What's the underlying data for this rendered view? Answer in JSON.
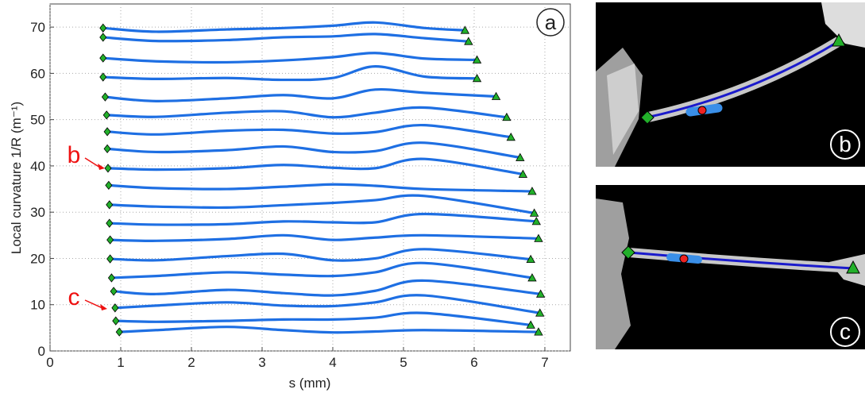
{
  "chart_data": {
    "type": "line",
    "xlabel": "s (mm)",
    "ylabel": "Local curvature 1/R (m⁻¹)",
    "xlim": [
      0,
      7.36
    ],
    "ylim": [
      0,
      75
    ],
    "xticks": [
      0,
      1,
      2,
      3,
      4,
      5,
      6,
      7
    ],
    "yticks": [
      0,
      10,
      20,
      30,
      40,
      50,
      60,
      70
    ],
    "grid": true,
    "line_color": "#1e6fe3",
    "start_marker_color": "#22b02a",
    "end_marker_color": "#22b02a",
    "panel_label": "a",
    "annotations": [
      "b",
      "c"
    ],
    "annotation_color": "#ee1111",
    "series": [
      {
        "x": [
          0.75,
          1.5,
          2.5,
          3.3,
          4.0,
          4.6,
          5.3,
          5.87
        ],
        "values": [
          69.8,
          69.0,
          69.5,
          69.8,
          70.3,
          71.0,
          69.8,
          69.3
        ]
      },
      {
        "x": [
          0.75,
          1.5,
          2.5,
          3.3,
          4.0,
          4.6,
          5.3,
          5.92
        ],
        "values": [
          67.8,
          67.0,
          67.2,
          67.8,
          68.0,
          68.5,
          67.6,
          66.9
        ]
      },
      {
        "x": [
          0.75,
          1.5,
          2.5,
          3.3,
          4.0,
          4.6,
          5.3,
          6.04
        ],
        "values": [
          63.3,
          62.6,
          62.4,
          62.8,
          63.5,
          64.4,
          63.2,
          62.9
        ]
      },
      {
        "x": [
          0.75,
          1.5,
          2.5,
          3.3,
          4.0,
          4.6,
          5.3,
          6.04
        ],
        "values": [
          59.2,
          58.8,
          59.0,
          58.6,
          59.0,
          61.5,
          59.3,
          58.9
        ]
      },
      {
        "x": [
          0.78,
          1.5,
          2.5,
          3.3,
          4.0,
          4.6,
          5.3,
          6.31
        ],
        "values": [
          54.9,
          54.0,
          54.6,
          55.3,
          54.6,
          56.5,
          55.8,
          55.0
        ]
      },
      {
        "x": [
          0.8,
          1.5,
          2.5,
          3.3,
          4.0,
          4.6,
          5.3,
          6.46
        ],
        "values": [
          51.0,
          50.6,
          51.5,
          51.8,
          50.5,
          51.5,
          52.6,
          50.5
        ]
      },
      {
        "x": [
          0.81,
          1.5,
          2.5,
          3.3,
          4.0,
          4.6,
          5.3,
          6.52
        ],
        "values": [
          47.4,
          46.8,
          47.6,
          47.8,
          47.0,
          47.3,
          48.8,
          46.2
        ]
      },
      {
        "x": [
          0.81,
          1.5,
          2.5,
          3.3,
          4.0,
          4.6,
          5.3,
          6.65
        ],
        "values": [
          43.7,
          43.0,
          43.4,
          44.2,
          43.0,
          43.2,
          45.0,
          41.8
        ]
      },
      {
        "x": [
          0.82,
          1.5,
          2.5,
          3.3,
          4.0,
          4.6,
          5.3,
          6.69
        ],
        "values": [
          39.5,
          39.2,
          39.5,
          40.2,
          39.6,
          39.5,
          41.5,
          38.2
        ]
      },
      {
        "x": [
          0.83,
          1.5,
          2.5,
          3.3,
          4.0,
          4.6,
          5.3,
          6.82
        ],
        "values": [
          35.8,
          35.2,
          35.0,
          35.5,
          36.0,
          35.7,
          35.0,
          34.5
        ]
      },
      {
        "x": [
          0.84,
          1.5,
          2.5,
          3.3,
          4.0,
          4.6,
          5.3,
          6.85
        ],
        "values": [
          31.6,
          31.2,
          31.0,
          31.5,
          32.0,
          32.6,
          33.5,
          29.8
        ]
      },
      {
        "x": [
          0.84,
          1.5,
          2.5,
          3.3,
          4.0,
          4.6,
          5.3,
          6.88
        ],
        "values": [
          27.6,
          27.3,
          27.4,
          28.0,
          27.8,
          27.8,
          29.6,
          28.0
        ]
      },
      {
        "x": [
          0.85,
          1.5,
          2.5,
          3.3,
          4.0,
          4.6,
          5.3,
          6.91
        ],
        "values": [
          24.0,
          23.8,
          24.2,
          25.0,
          24.0,
          24.5,
          25.0,
          24.3
        ]
      },
      {
        "x": [
          0.85,
          1.5,
          2.5,
          3.3,
          4.0,
          4.6,
          5.3,
          6.8
        ],
        "values": [
          19.9,
          19.6,
          20.5,
          21.0,
          19.6,
          20.0,
          22.0,
          19.8
        ]
      },
      {
        "x": [
          0.87,
          1.5,
          2.5,
          3.3,
          4.0,
          4.6,
          5.3,
          6.82
        ],
        "values": [
          15.8,
          16.2,
          17.0,
          16.5,
          16.2,
          17.0,
          19.0,
          15.8
        ]
      },
      {
        "x": [
          0.9,
          1.5,
          2.5,
          3.3,
          4.0,
          4.6,
          5.3,
          6.94
        ],
        "values": [
          12.9,
          12.3,
          13.2,
          12.5,
          12.0,
          13.0,
          15.2,
          12.3
        ]
      },
      {
        "x": [
          0.92,
          1.5,
          2.5,
          3.3,
          4.0,
          4.6,
          5.3,
          6.93
        ],
        "values": [
          9.3,
          9.8,
          10.5,
          9.8,
          9.7,
          10.5,
          12.0,
          8.2
        ]
      },
      {
        "x": [
          0.93,
          1.5,
          2.5,
          3.3,
          4.0,
          4.6,
          5.3,
          6.8
        ],
        "values": [
          6.5,
          6.3,
          6.5,
          6.8,
          6.8,
          7.2,
          8.2,
          5.6
        ]
      },
      {
        "x": [
          0.98,
          1.5,
          2.5,
          3.3,
          4.0,
          4.6,
          5.3,
          6.91
        ],
        "values": [
          4.1,
          4.5,
          5.2,
          4.5,
          4.0,
          4.2,
          4.5,
          4.1
        ]
      }
    ]
  },
  "photos": {
    "labels": [
      "b",
      "c"
    ]
  }
}
